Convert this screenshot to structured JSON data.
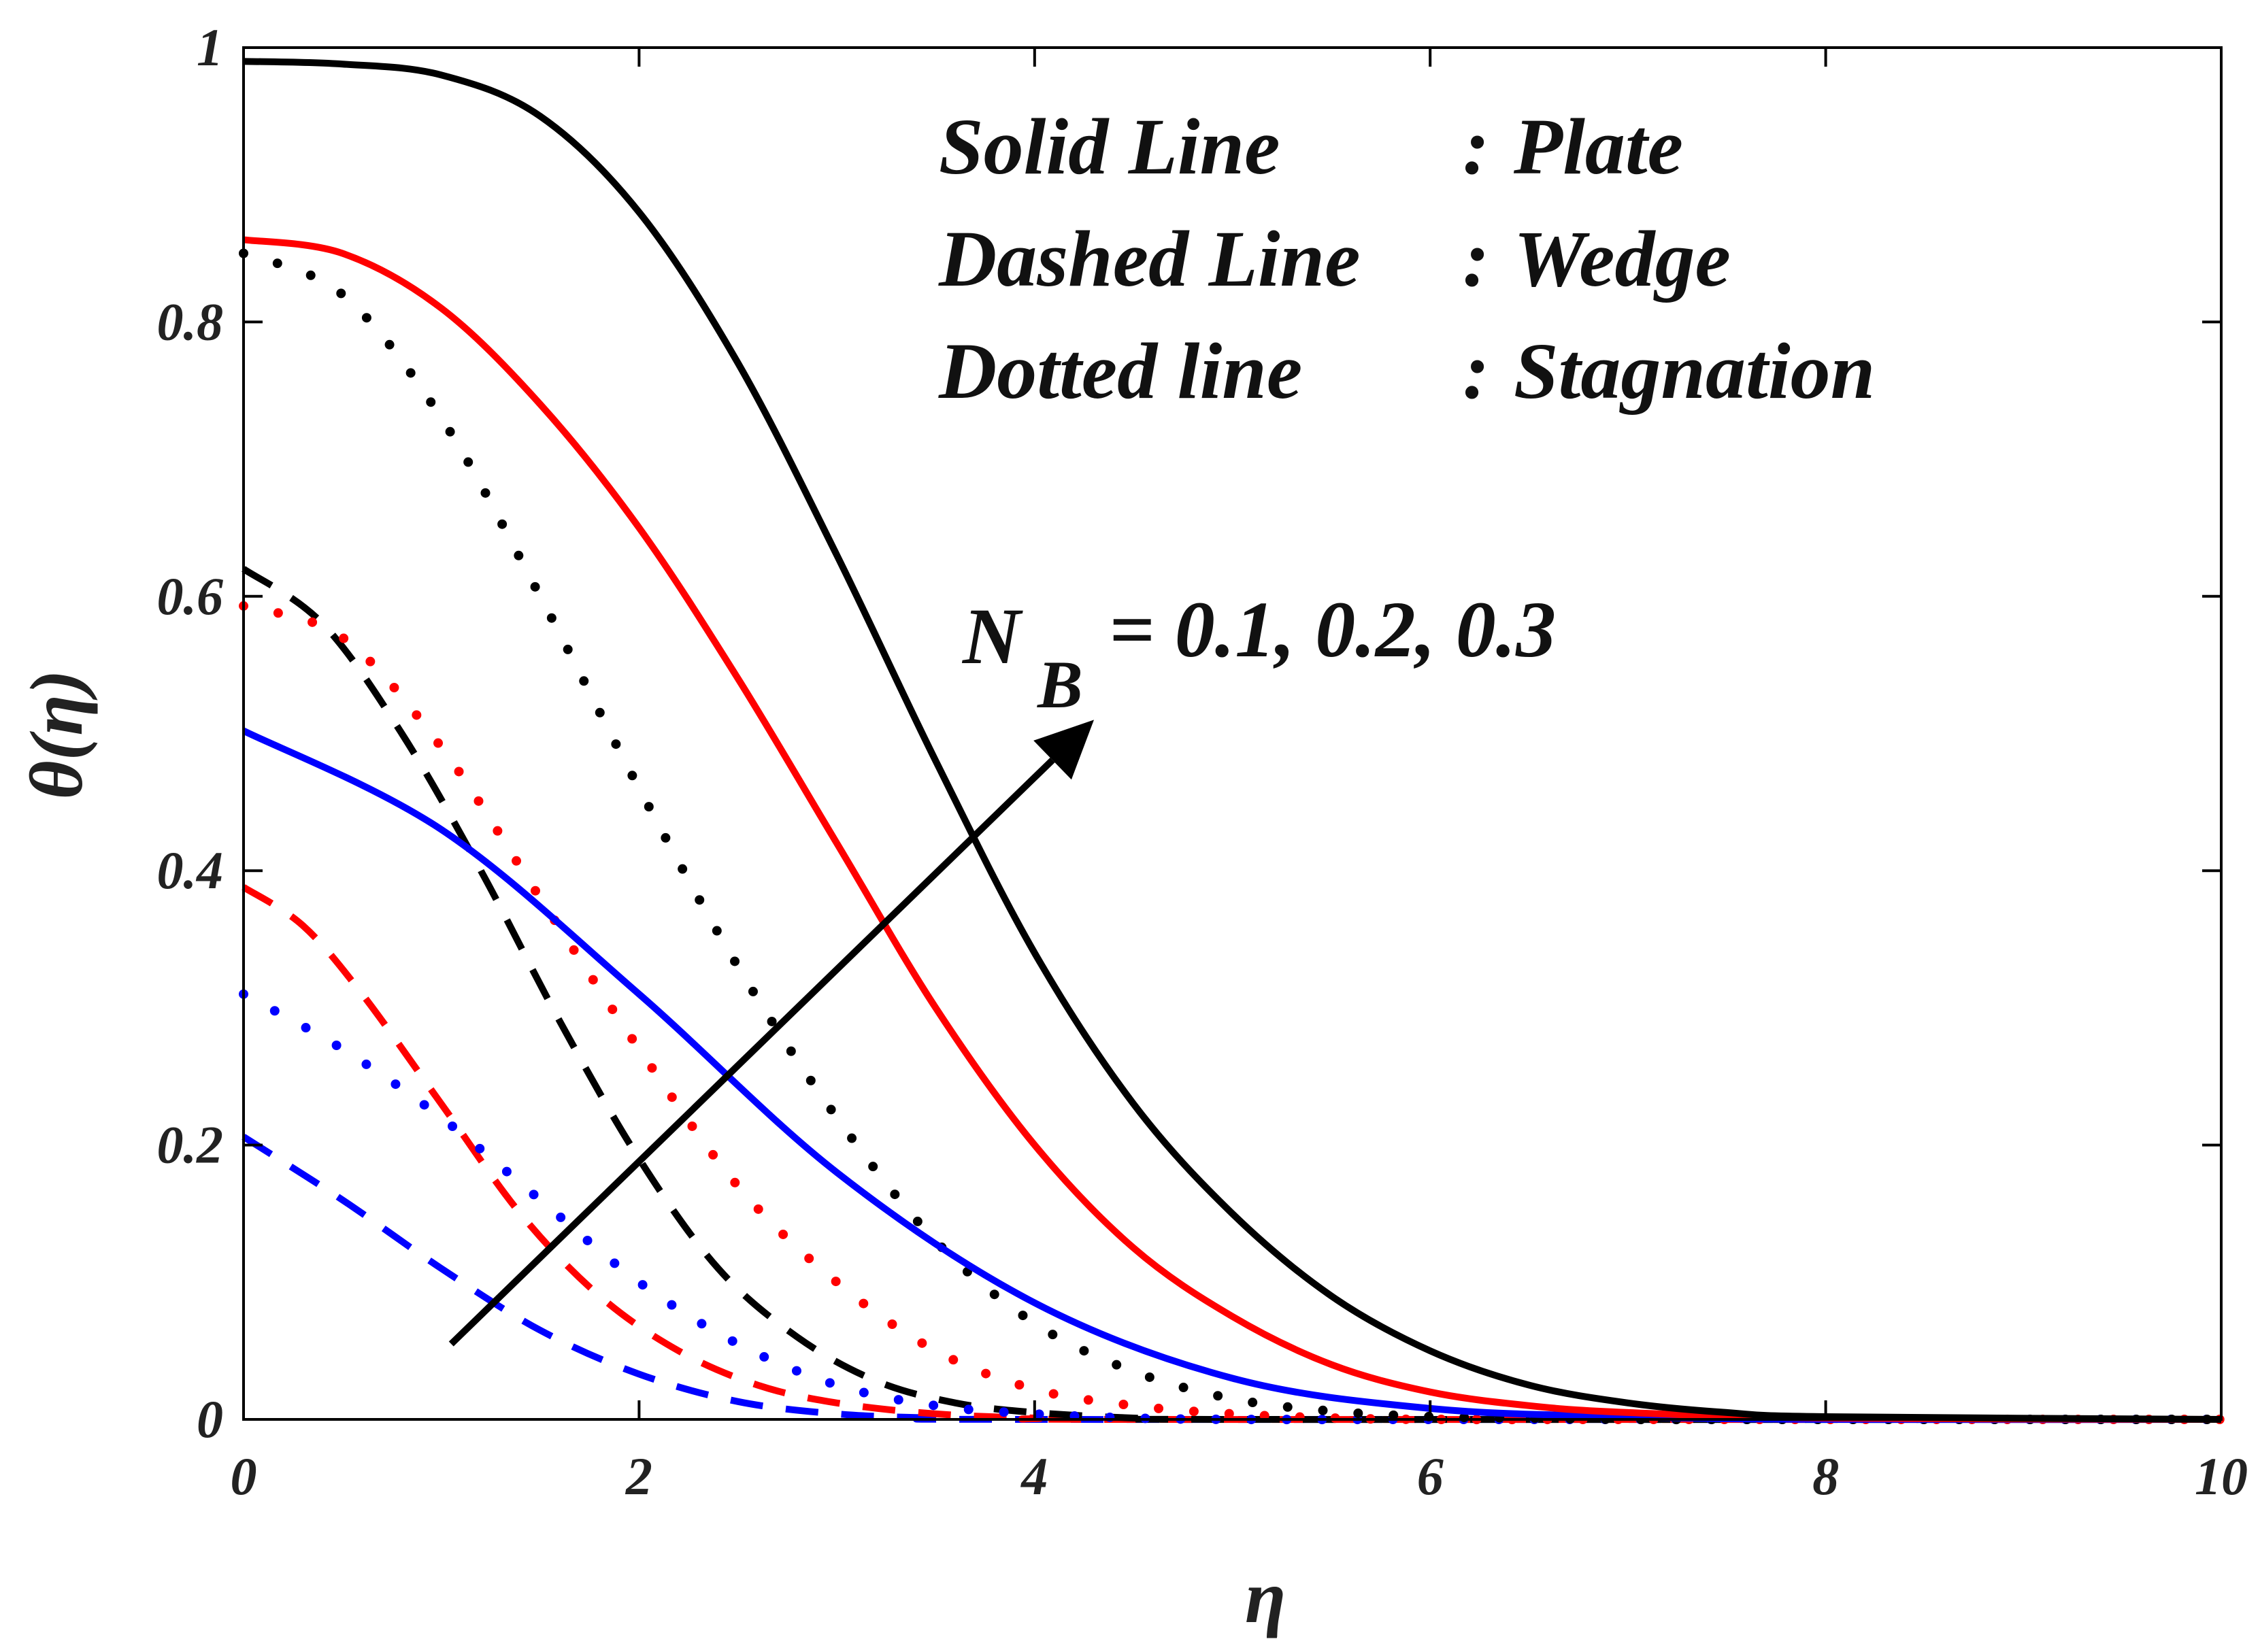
{
  "chart_data": {
    "type": "line",
    "title": "",
    "xlabel": "η",
    "ylabel": "θ(η)",
    "xlim": [
      0,
      10
    ],
    "ylim": [
      0,
      1
    ],
    "grid": false,
    "xticks": [
      0,
      2,
      4,
      6,
      8,
      10
    ],
    "xtick_labels": [
      "0",
      "2",
      "4",
      "6",
      "8",
      "10"
    ],
    "yticks": [
      0,
      0.2,
      0.4,
      0.6,
      0.8,
      1
    ],
    "ytick_labels": [
      "0",
      "0.2",
      "0.4",
      "0.6",
      "0.8",
      "1"
    ],
    "legend": {
      "placement": "top-right",
      "rows": [
        {
          "name": "Solid Line",
          "sep": ":",
          "geometry": "Plate"
        },
        {
          "name": "Dashed Line",
          "sep": ":",
          "geometry": "Wedge"
        },
        {
          "name": "Dotted line",
          "sep": ":",
          "geometry": "Stagnation"
        }
      ]
    },
    "annotation": {
      "symbol": "N",
      "subscript": "B",
      "values_text": "= 0.1, 0.2, 0.3",
      "arrow": {
        "from": [
          1.05,
          0.055
        ],
        "to": [
          4.3,
          0.51
        ]
      }
    },
    "colors": {
      "NB=0.1": "#0000ff",
      "NB=0.2": "#ff0000",
      "NB=0.3": "#000000"
    },
    "series": [
      {
        "name": "Plate, NB=0.1",
        "style": "solid",
        "color": "#0000ff",
        "x": [
          0,
          1,
          2,
          3,
          4,
          5,
          6,
          7,
          8,
          10
        ],
        "y": [
          0.502,
          0.43,
          0.31,
          0.18,
          0.085,
          0.03,
          0.008,
          0.002,
          0,
          0
        ]
      },
      {
        "name": "Plate, NB=0.2",
        "style": "solid",
        "color": "#ff0000",
        "x": [
          0,
          0.5,
          1,
          1.5,
          2,
          2.5,
          3,
          3.5,
          4,
          4.5,
          5,
          5.5,
          6,
          6.5,
          7,
          8,
          10
        ],
        "y": [
          0.86,
          0.85,
          0.81,
          0.74,
          0.65,
          0.54,
          0.42,
          0.3,
          0.2,
          0.125,
          0.075,
          0.04,
          0.02,
          0.01,
          0.005,
          0.001,
          0
        ]
      },
      {
        "name": "Plate, NB=0.3",
        "style": "solid",
        "color": "#000000",
        "x": [
          0,
          0.5,
          1,
          1.5,
          2,
          2.5,
          3,
          3.5,
          4,
          4.5,
          5,
          5.5,
          6,
          6.5,
          7,
          7.5,
          8,
          10
        ],
        "y": [
          0.99,
          0.988,
          0.98,
          0.95,
          0.88,
          0.77,
          0.63,
          0.48,
          0.34,
          0.23,
          0.15,
          0.09,
          0.05,
          0.025,
          0.012,
          0.005,
          0.002,
          0
        ]
      },
      {
        "name": "Wedge, NB=0.1",
        "style": "dashed",
        "color": "#0000ff",
        "x": [
          0,
          0.5,
          1,
          1.5,
          2,
          2.5,
          3,
          3.5,
          4,
          10
        ],
        "y": [
          0.206,
          0.16,
          0.11,
          0.065,
          0.033,
          0.013,
          0.004,
          0.001,
          0,
          0
        ]
      },
      {
        "name": "Wedge, NB=0.2",
        "style": "dashed",
        "color": "#ff0000",
        "x": [
          0,
          0.3,
          0.6,
          1,
          1.4,
          1.8,
          2.2,
          2.6,
          3,
          3.5,
          4,
          4.5,
          10
        ],
        "y": [
          0.388,
          0.36,
          0.31,
          0.23,
          0.15,
          0.09,
          0.05,
          0.025,
          0.012,
          0.004,
          0.001,
          0,
          0
        ]
      },
      {
        "name": "Wedge, NB=0.3",
        "style": "dashed",
        "color": "#000000",
        "x": [
          0,
          0.4,
          0.8,
          1.2,
          1.6,
          2,
          2.4,
          2.8,
          3.2,
          3.6,
          4,
          4.5,
          5,
          10
        ],
        "y": [
          0.62,
          0.58,
          0.5,
          0.4,
          0.29,
          0.19,
          0.11,
          0.06,
          0.028,
          0.012,
          0.005,
          0.001,
          0,
          0
        ]
      },
      {
        "name": "Stagnation, NB=0.1",
        "style": "dotted",
        "color": "#0000ff",
        "x": [
          0,
          0.5,
          1,
          1.5,
          2,
          2.5,
          3,
          3.5,
          4,
          4.5,
          5,
          6,
          7,
          10
        ],
        "y": [
          0.31,
          0.27,
          0.22,
          0.16,
          0.1,
          0.055,
          0.025,
          0.01,
          0.004,
          0.001,
          0,
          0,
          0,
          0
        ]
      },
      {
        "name": "Stagnation, NB=0.2",
        "style": "dotted",
        "color": "#ff0000",
        "x": [
          0,
          0.5,
          1,
          1.5,
          2,
          2.5,
          3,
          3.5,
          4,
          4.5,
          5,
          5.5,
          6,
          7,
          8,
          10
        ],
        "y": [
          0.593,
          0.57,
          0.49,
          0.38,
          0.27,
          0.17,
          0.1,
          0.05,
          0.022,
          0.01,
          0.004,
          0.001,
          0,
          0,
          0,
          0
        ]
      },
      {
        "name": "Stagnation, NB=0.3",
        "style": "dotted",
        "color": "#000000",
        "x": [
          0,
          0.5,
          1,
          1.5,
          2,
          2.5,
          3,
          3.5,
          4,
          4.5,
          5,
          5.5,
          6,
          6.5,
          7,
          8,
          10
        ],
        "y": [
          0.85,
          0.82,
          0.73,
          0.6,
          0.46,
          0.33,
          0.22,
          0.13,
          0.07,
          0.035,
          0.015,
          0.006,
          0.002,
          0.001,
          0,
          0,
          0
        ]
      }
    ]
  }
}
